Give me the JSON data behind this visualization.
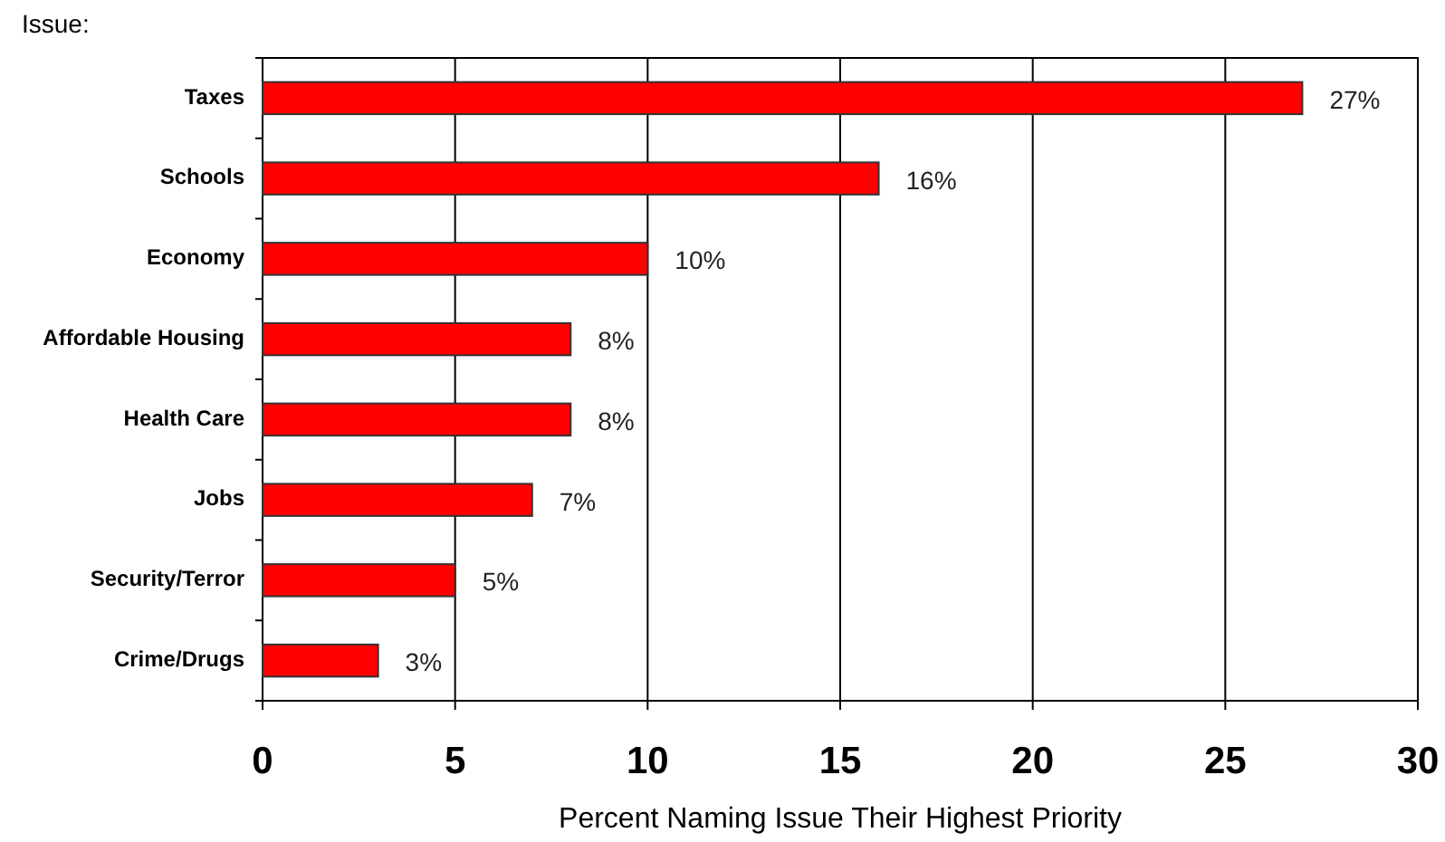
{
  "chart_data": {
    "type": "bar",
    "orientation": "horizontal",
    "ylabel": "Issue:",
    "xlabel": "Percent Naming Issue Their Highest Priority",
    "categories": [
      "Taxes",
      "Schools",
      "Economy",
      "Affordable Housing",
      "Health Care",
      "Jobs",
      "Security/Terror",
      "Crime/Drugs"
    ],
    "values": [
      27,
      16,
      10,
      8,
      8,
      7,
      5,
      3
    ],
    "value_labels": [
      "27%",
      "16%",
      "10%",
      "8%",
      "8%",
      "7%",
      "5%",
      "3%"
    ],
    "color": "#ff0000",
    "xlim": [
      0,
      30
    ],
    "xticks": [
      0,
      5,
      10,
      15,
      20,
      25,
      30
    ],
    "grid": "x"
  }
}
